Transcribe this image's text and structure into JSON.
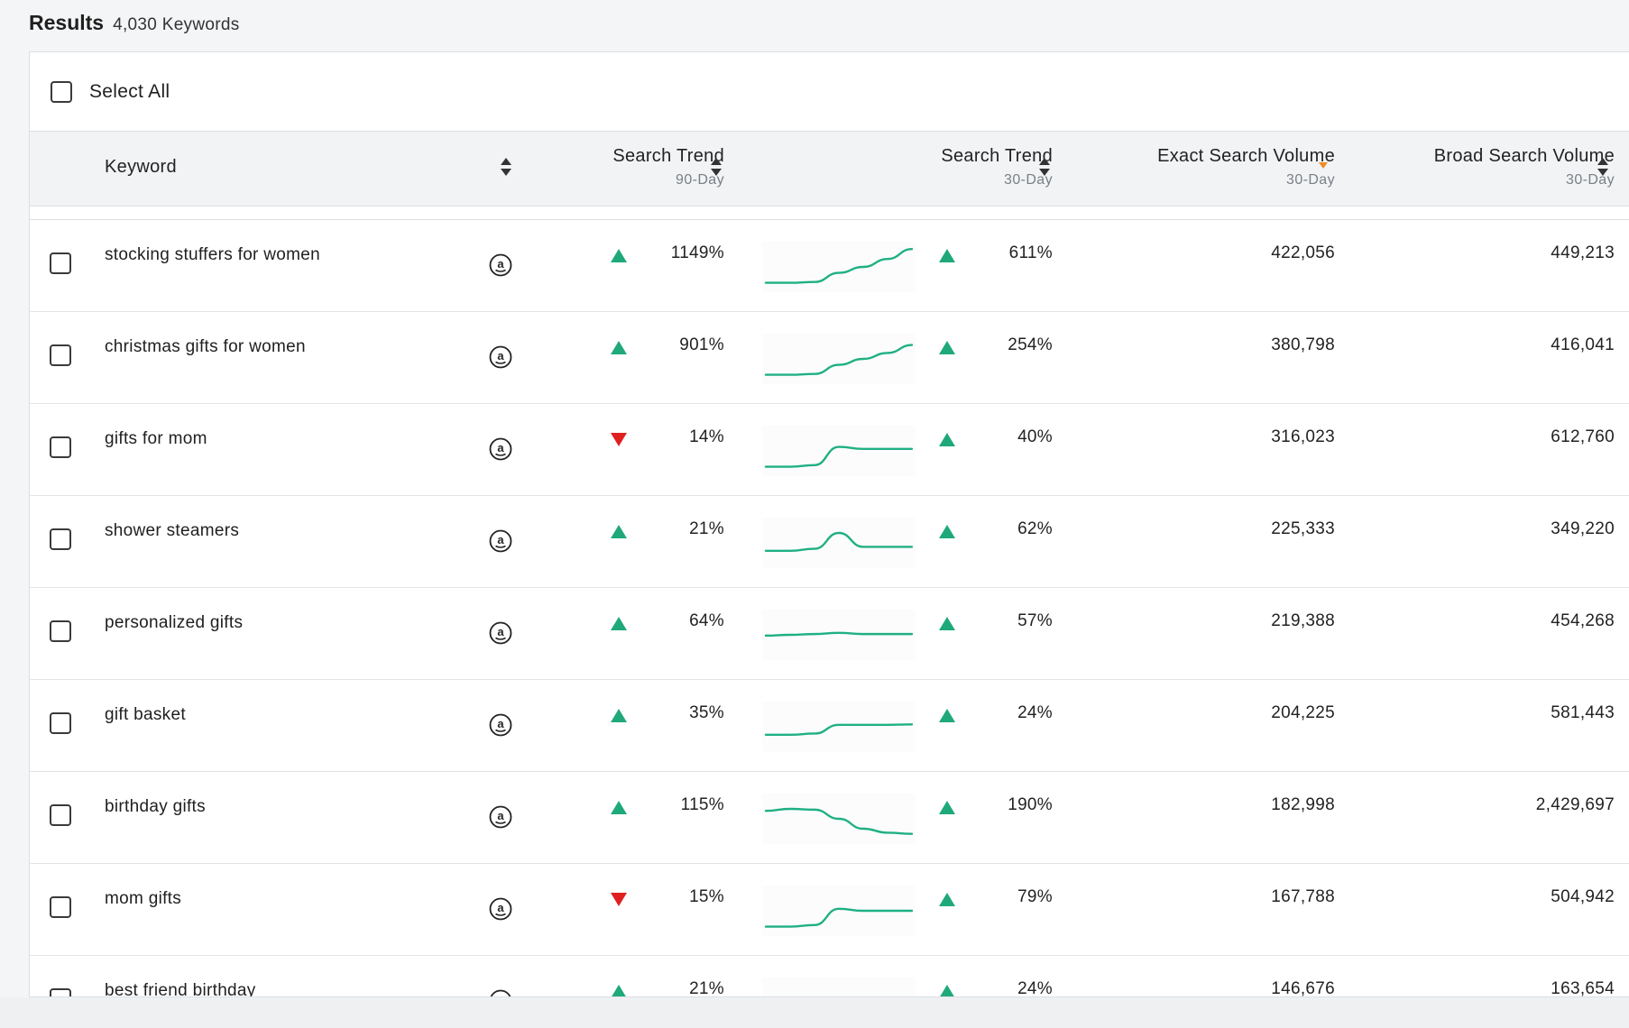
{
  "results": {
    "title": "Results",
    "count": "4,030 Keywords"
  },
  "select_all_label": "Select All",
  "columns": {
    "keyword": "Keyword",
    "trend90": {
      "label": "Search Trend",
      "sub": "90-Day"
    },
    "trend30": {
      "label": "Search Trend",
      "sub": "30-Day"
    },
    "exact": {
      "label": "Exact Search Volume",
      "sub": "30-Day"
    },
    "broad": {
      "label": "Broad Search Volume",
      "sub": "30-Day"
    }
  },
  "colors": {
    "up": "#1fa97a",
    "down": "#e02020",
    "sort_active": "#f08a24",
    "spark": "#1fb083"
  },
  "icons": {
    "marketplace": "amazon-icon",
    "sort": "sort-arrows-icon",
    "sort_desc": "sort-desc-icon",
    "up": "triangle-up-icon",
    "down": "triangle-down-icon"
  },
  "rows": [
    {
      "keyword": "stocking stuffers for women",
      "trend90_dir": "up",
      "trend90": "1149%",
      "spark": [
        0.1,
        0.1,
        0.12,
        0.35,
        0.5,
        0.7,
        0.95
      ],
      "trend30_dir": "up",
      "trend30": "611%",
      "exact": "422,056",
      "broad": "449,213"
    },
    {
      "keyword": "christmas gifts for women",
      "trend90_dir": "up",
      "trend90": "901%",
      "spark": [
        0.1,
        0.1,
        0.12,
        0.35,
        0.5,
        0.65,
        0.85
      ],
      "trend30_dir": "up",
      "trend30": "254%",
      "exact": "380,798",
      "broad": "416,041"
    },
    {
      "keyword": "gifts for mom",
      "trend90_dir": "down",
      "trend90": "14%",
      "spark": [
        0.1,
        0.1,
        0.14,
        0.6,
        0.55,
        0.55,
        0.55
      ],
      "trend30_dir": "up",
      "trend30": "40%",
      "exact": "316,023",
      "broad": "612,760"
    },
    {
      "keyword": "shower steamers",
      "trend90_dir": "up",
      "trend90": "21%",
      "spark": [
        0.3,
        0.3,
        0.35,
        0.75,
        0.4,
        0.4,
        0.4
      ],
      "trend30_dir": "up",
      "trend30": "62%",
      "exact": "225,333",
      "broad": "349,220"
    },
    {
      "keyword": "personalized gifts",
      "trend90_dir": "up",
      "trend90": "64%",
      "spark": [
        0.48,
        0.5,
        0.52,
        0.55,
        0.52,
        0.52,
        0.52
      ],
      "trend30_dir": "up",
      "trend30": "57%",
      "exact": "219,388",
      "broad": "454,268"
    },
    {
      "keyword": "gift basket",
      "trend90_dir": "up",
      "trend90": "35%",
      "spark": [
        0.3,
        0.3,
        0.33,
        0.55,
        0.55,
        0.55,
        0.56
      ],
      "trend30_dir": "up",
      "trend30": "24%",
      "exact": "204,225",
      "broad": "581,443"
    },
    {
      "keyword": "birthday gifts",
      "trend90_dir": "up",
      "trend90": "115%",
      "spark": [
        0.7,
        0.75,
        0.73,
        0.5,
        0.25,
        0.15,
        0.12
      ],
      "trend30_dir": "up",
      "trend30": "190%",
      "exact": "182,998",
      "broad": "2,429,697"
    },
    {
      "keyword": "mom gifts",
      "trend90_dir": "down",
      "trend90": "15%",
      "spark": [
        0.1,
        0.1,
        0.14,
        0.55,
        0.5,
        0.5,
        0.5
      ],
      "trend30_dir": "up",
      "trend30": "79%",
      "exact": "167,788",
      "broad": "504,942"
    },
    {
      "keyword": "best friend birthday",
      "trend90_dir": "up",
      "trend90": "21%",
      "spark": [],
      "trend30_dir": "up",
      "trend30": "24%",
      "exact": "146,676",
      "broad": "163,654"
    }
  ]
}
